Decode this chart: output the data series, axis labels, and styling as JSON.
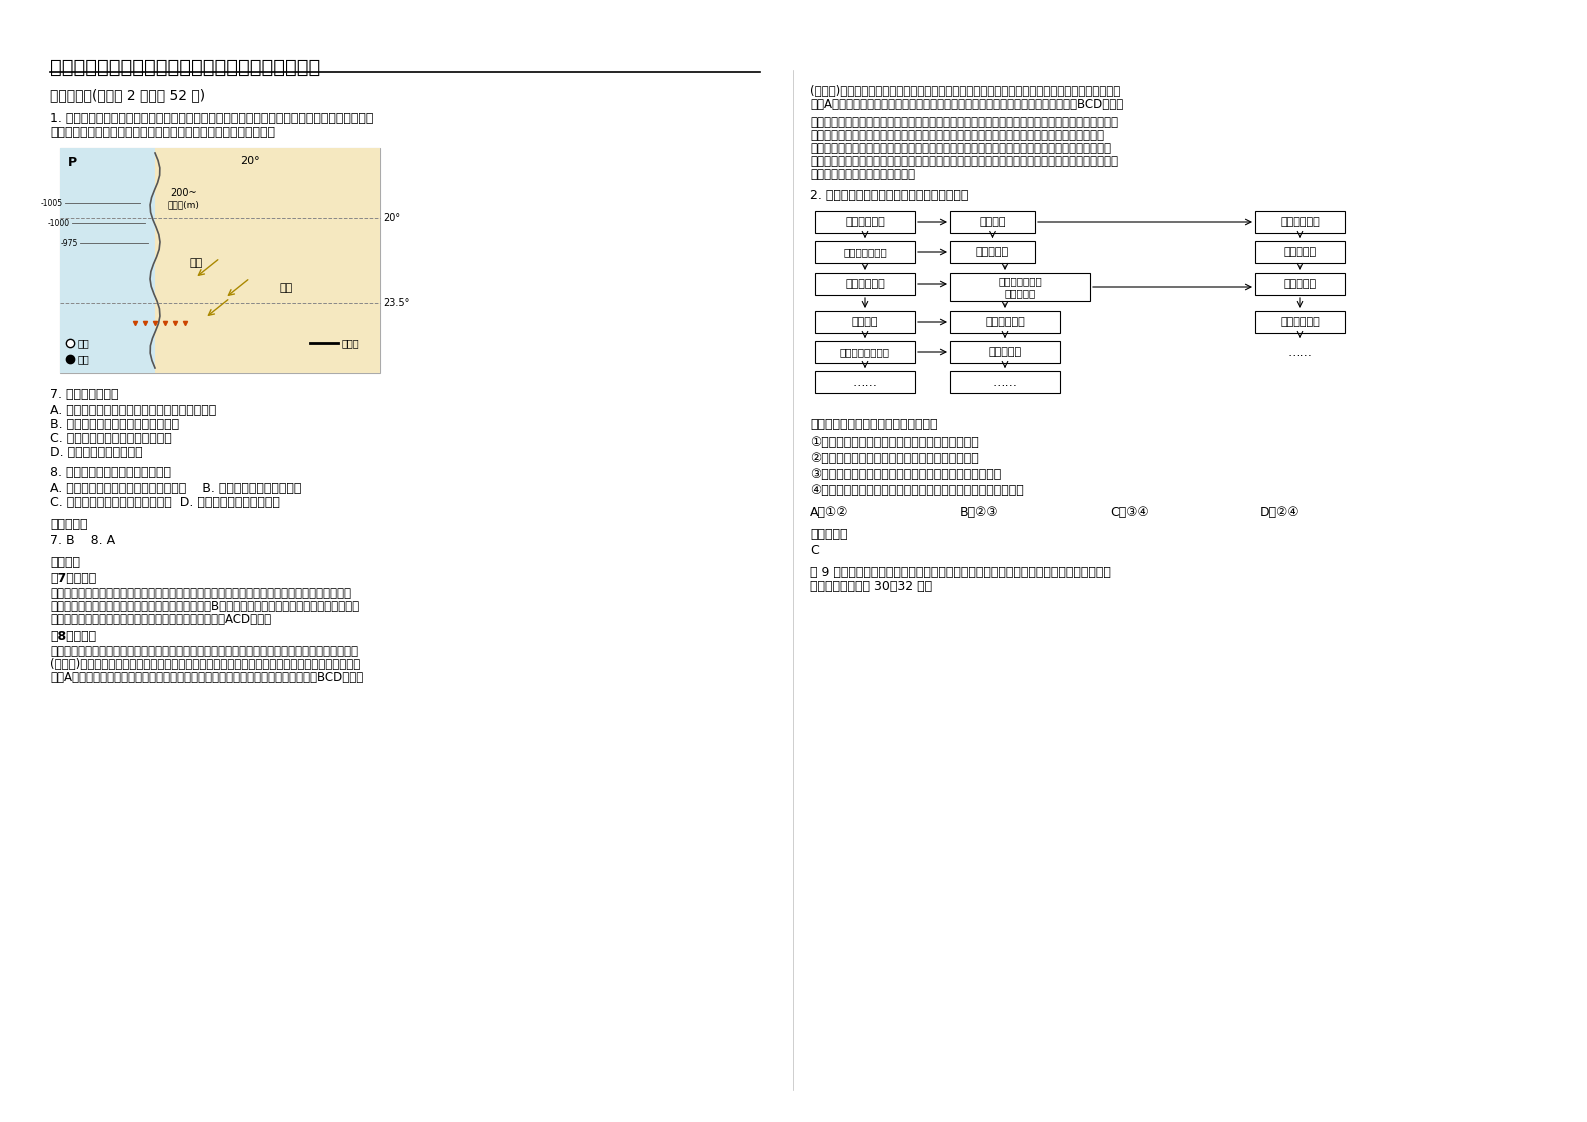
{
  "title": "福建省福州市智华民族中学高二地理月考试题含解析",
  "section1": "一、选择题(每小题 2 分，共 52 分)",
  "q_intro_1": "1. 下图所示，为某国西部海岸地区可观赏倒沙入海奇景：红色沙漠依傍着蔚蓝的海洋，滚滚沙流",
  "q_intro_2": "飞泻入海，上万只火烈鸟聚集在附近的浅滩上。据此完成下列各题。",
  "q7_text": "7. 倒沙入海的形成",
  "q7_a": "A. 反映当地水土流失严重，入海河流泥沙含量大",
  "q7_b": "B. 反映了当地气候干旱并盛行离岸风",
  "q7_c": "C. 主要与当地高原广布的地形有关",
  "q7_d": "D. 是人类填海造陆的结果",
  "q8_text": "8. 附近浅滩火烈鸟聚集是由于该地",
  "q8_a": "A. 沿岸有上升流，鱼类丰富，利于觅食    B. 倒沙入海，营养物质丰富",
  "q8_b": "C. 气候较同纬地区温暖，利于繁殖  D. 沿海地势低平，利于筑巢",
  "answers_title": "参考答案：",
  "answers": "7. B    8. A",
  "analysis_title": "【分析】",
  "q7_analysis_title": "【7题详解】",
  "q7_analysis_1": "图示地区位副热带高气压带和信风带控制区，盛行下沉气流，气候干燥，为热带沙漠气候，沙漠广",
  "q7_analysis_2": "布，又由于此处吹离岸风，故而形成这种奇景。故选B。当地气候干旱，水土流失并不严重，与当地",
  "q7_analysis_3": "高原广布的地形无关，无法判断是人类填海造陆的结果，ACD错误。",
  "q8_analysis_title": "【8题详解】",
  "q8_analysis_1": "该地位于非洲西海岸，地处东南信风带内，风向由陆地吹向海洋，盛行离岸风，且此处有本格拉寒流",
  "q8_analysis_2": "(上升流)经过，营养物质为鱼类提供丰富饵料，火烈鸟以捕食鱼类为主，鱼类丰富吸引火烈鸟聚集。",
  "q8_analysis_3": "故选A。倒沙入海并不一定带来丰富营养物质，主要是洋流的影响，和气候地势无关，BCD错误。",
  "note_title": "【点拨】",
  "note_1": "考察区域定位的能力和区域特征的掌握与分析，从图中的经纬度和国家轮廓特征可以判断该",
  "note_2": "国是非洲的纳米比亚，可以通过排除的方法完整做题。解答本题，根据材料信息滚滚沙流飞泻入",
  "note_3": "海表明流沙是被离岸风吹拂入海的，蔚蓝海洋与火烈鸟表明该地区生态环境较好，沙漠表明该地区",
  "note_4": "的气候干旱，动物（鱼类、鸟类）的集聚主要是为了食物，根据该地区的地理位置，可判断该地区鱼",
  "note_5": "类资源丰富，利于火烈鸟的觅食。",
  "q2_intro": "2. 读自然灾害与中国奶牛业发展示意图，回答",
  "q2_options": "关于我国奶牛业发展的叙述，正确的是",
  "q2_opt1": "①过度放牧，使奶牛数量增多，促进奶牛业的发展",
  "q2_opt2": "②乱采、乱挖，导致鼠害猖獗，制约奶牛业的发展",
  "q2_opt3": "③奶牛业的过度发展，会加剧草原人为灾害对草原的破坏",
  "q2_opt4": "④影响奶牛业发展的因素有草原灾害、社会化程度、奶牛品质等",
  "q2_choiceA": "A．①②",
  "q2_choiceB": "B．②③",
  "q2_choiceC": "C．③④",
  "q2_choiceD": "D．②④",
  "q2_answer_title": "参考答案：",
  "q2_answer": "C",
  "q3_intro_1": "图 9 为我国三个流域水灾受灾比（受水灾的县域个数与总县域个数的比值）多年平均的月",
  "q3_intro_2": "变化图。读图回答 30～32 题。",
  "right_col_1": "(上升流)经过，营养物质为鱼类提供丰富饵料，火烈鸟以捕食鱼类为主，鱼类丰富吸引火烈鸟聚集。",
  "right_col_2": "故选A。倒沙入海并不一定带来丰富营养物质，主要是洋流的影响，和气候地势无关，BCD错误。",
  "right_note_1": "【点拨】考察区域定位的能力和区域特征的掌握与分析，从图中的经纬度和国家轮廓特征可以判断该",
  "right_note_2": "国是非洲的纳米比亚，可以通过排除的方法完整做题。解答本题，根据材料信息滚滚沙流飞泻入",
  "right_note_3": "海表明流沙是被离岸风吹拂入海的，蔚蓝海洋与火烈鸟表明该地区生态环境较好，沙漠表明该地区",
  "right_note_4": "的气候干旱，动物（鱼类、鸟类）的集聚主要是为了食物，根据该地区的地理位置，可判断该地区鱼",
  "right_note_5": "类资源丰富，利于火烈鸟的觅食。",
  "bg_color": "#ffffff",
  "text_color": "#000000"
}
